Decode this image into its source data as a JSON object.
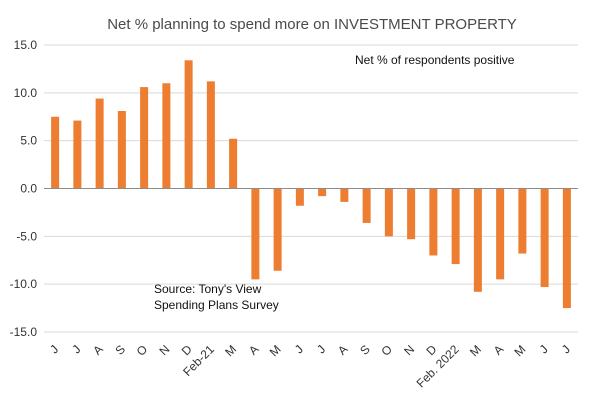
{
  "chart_data": {
    "type": "bar",
    "title": "Net % planning to spend more on INVESTMENT PROPERTY",
    "annotation": "Net % of respondents positive",
    "source_lines": [
      "Source: Tony's View",
      "Spending Plans Survey"
    ],
    "categories": [
      "J",
      "J",
      "A",
      "S",
      "O",
      "N",
      "D",
      "Feb-21",
      "M",
      "A",
      "M",
      "J",
      "J",
      "A",
      "S",
      "O",
      "N",
      "D",
      "Feb. 2022",
      "M",
      "A",
      "M",
      "J",
      "J"
    ],
    "values": [
      7.5,
      7.1,
      9.4,
      8.1,
      10.6,
      11.0,
      13.4,
      11.2,
      5.2,
      -9.5,
      -8.6,
      -1.8,
      -0.8,
      -1.4,
      -3.6,
      -5.0,
      -5.3,
      -7.0,
      -7.9,
      -10.8,
      -9.5,
      -6.8,
      -10.3,
      -12.5
    ],
    "y_ticks": [
      "15.0",
      "10.0",
      "5.0",
      "0.0",
      "-5.0",
      "-10.0",
      "-15.0"
    ],
    "ylim": [
      -15,
      15
    ],
    "bar_color": "#ed7d31",
    "grid": true
  }
}
